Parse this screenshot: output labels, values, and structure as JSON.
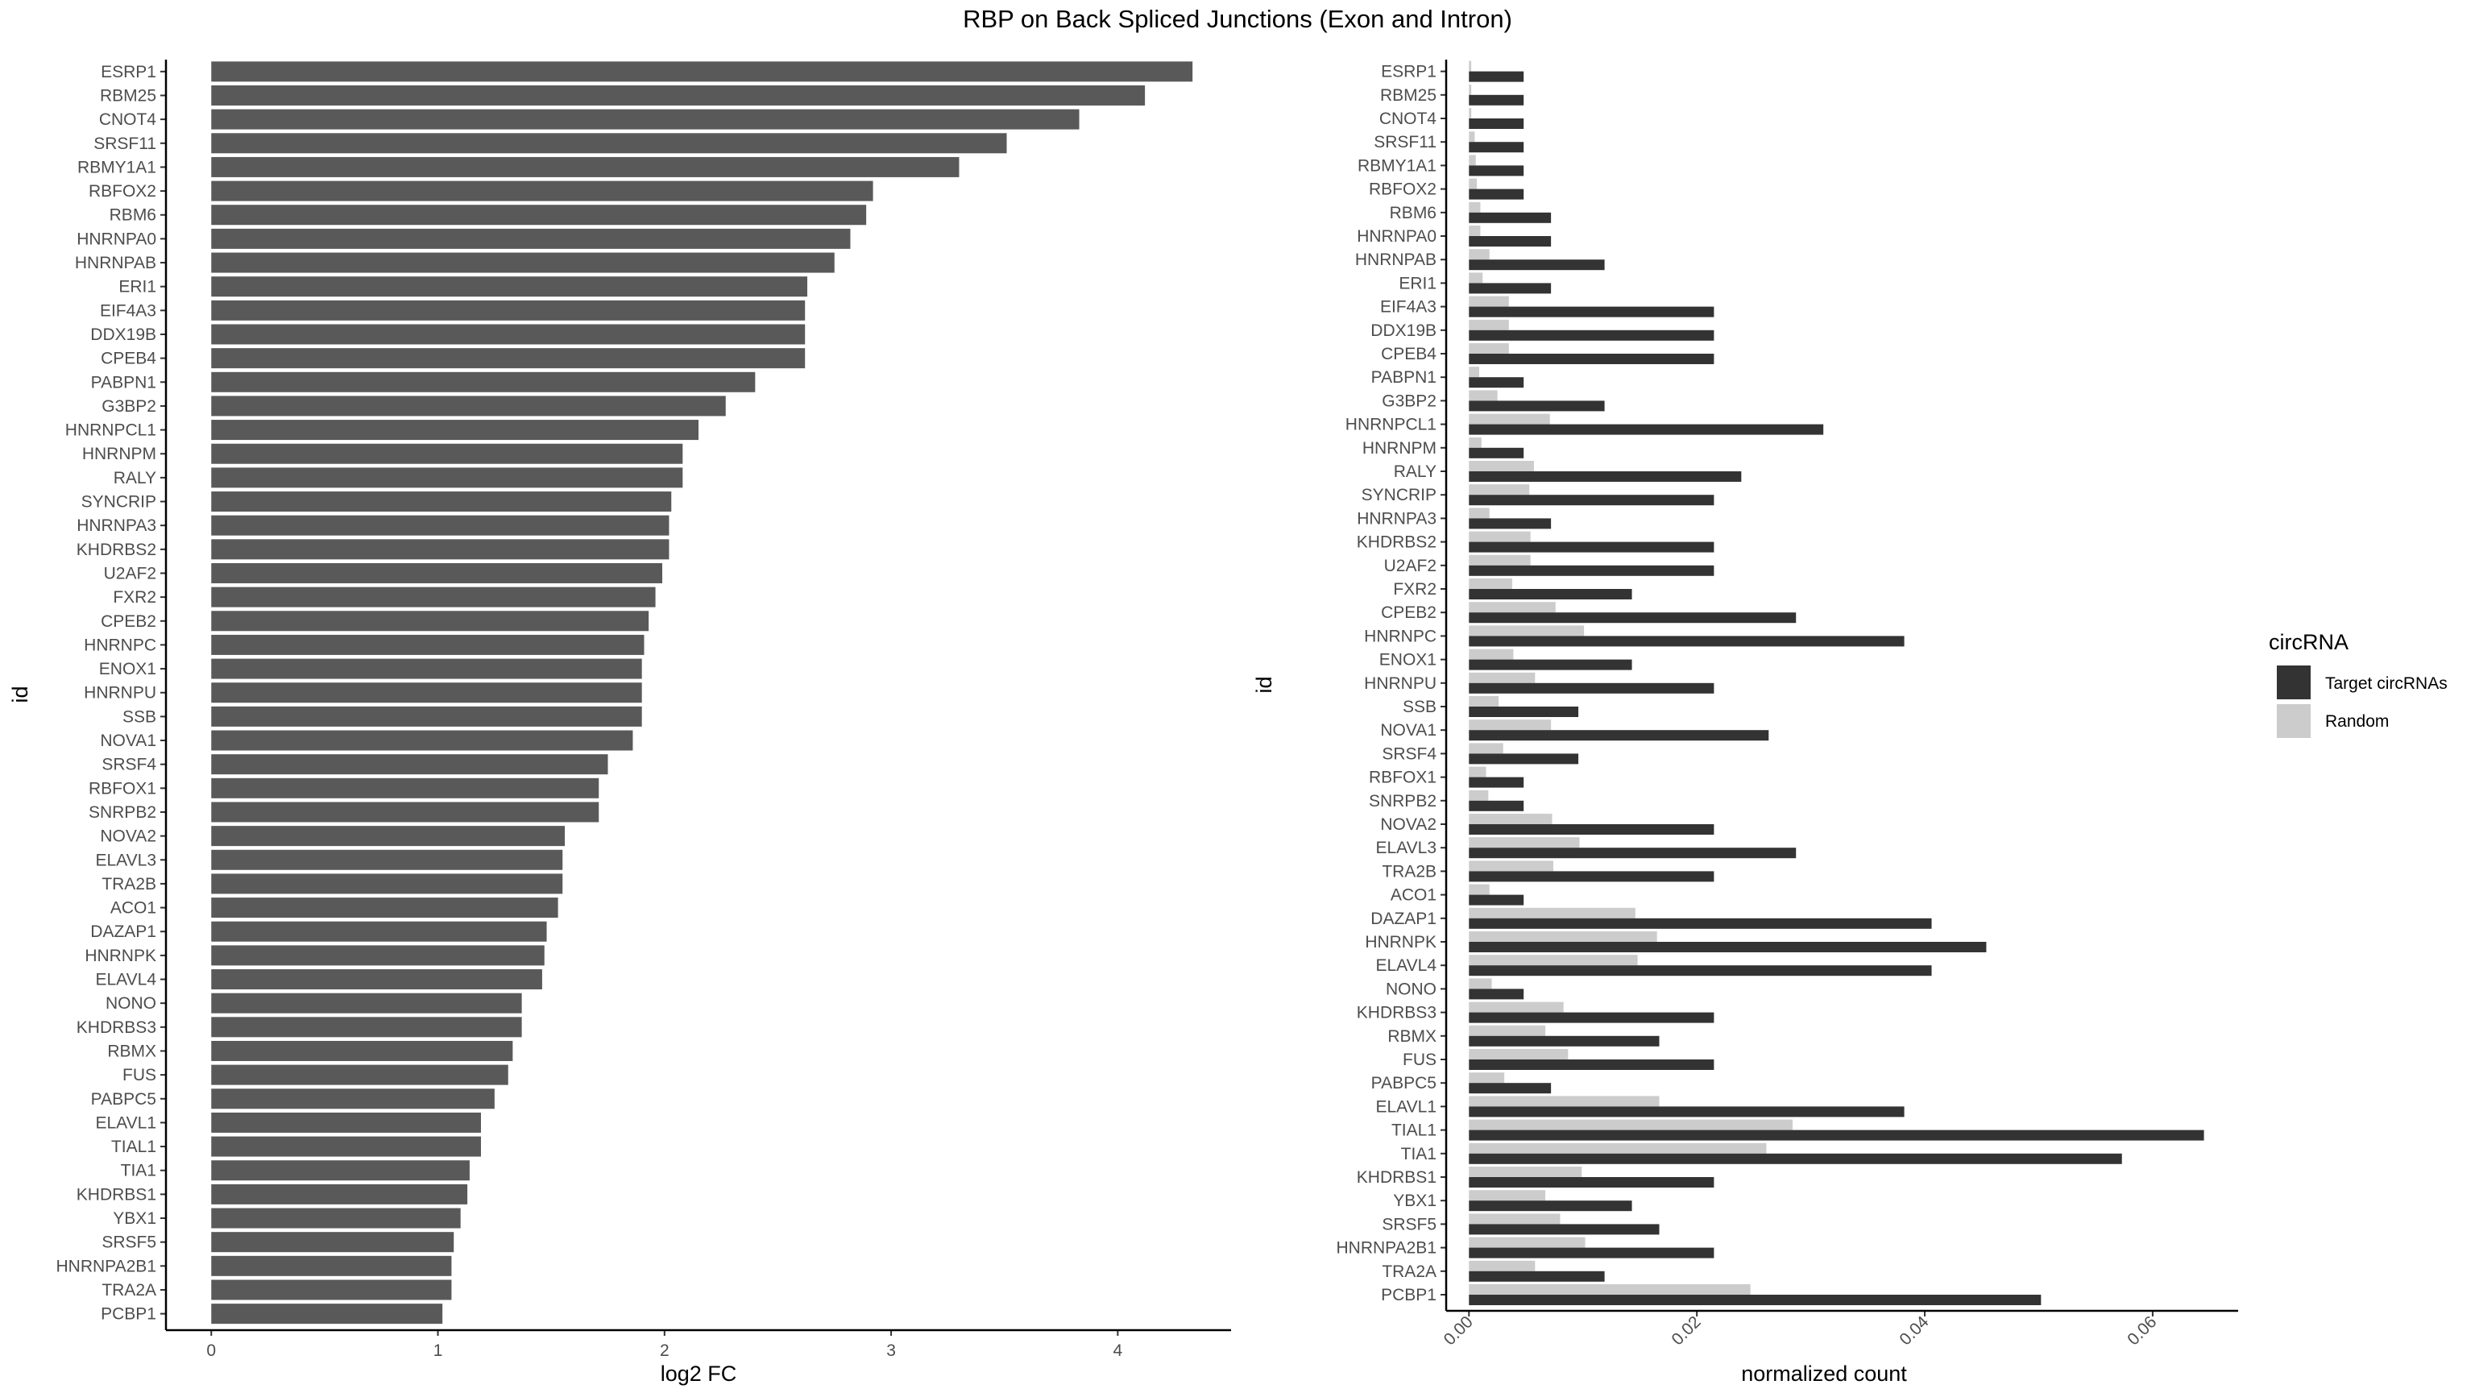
{
  "chart_data": [
    {
      "type": "bar",
      "orientation": "horizontal",
      "title": "RBP on Back Spliced Junctions (Exon and Intron)",
      "xlabel": "log2 FC",
      "ylabel": "id",
      "xlim": [
        -0.2,
        4.5
      ],
      "xticks": [
        "0",
        "1",
        "2",
        "3",
        "4"
      ],
      "grid": false,
      "color": "#595959",
      "categories": [
        "ESRP1",
        "RBM25",
        "CNOT4",
        "SRSF11",
        "RBMY1A1",
        "RBFOX2",
        "RBM6",
        "HNRNPA0",
        "HNRNPAB",
        "ERI1",
        "EIF4A3",
        "DDX19B",
        "CPEB4",
        "PABPN1",
        "G3BP2",
        "HNRNPCL1",
        "HNRNPM",
        "RALY",
        "SYNCRIP",
        "HNRNPA3",
        "KHDRBS2",
        "U2AF2",
        "FXR2",
        "CPEB2",
        "HNRNPC",
        "ENOX1",
        "HNRNPU",
        "SSB",
        "NOVA1",
        "SRSF4",
        "RBFOX1",
        "SNRPB2",
        "NOVA2",
        "ELAVL3",
        "TRA2B",
        "ACO1",
        "DAZAP1",
        "HNRNPK",
        "ELAVL4",
        "NONO",
        "KHDRBS3",
        "RBMX",
        "FUS",
        "PABPC5",
        "ELAVL1",
        "TIAL1",
        "TIA1",
        "KHDRBS1",
        "YBX1",
        "SRSF5",
        "HNRNPA2B1",
        "TRA2A",
        "PCBP1"
      ],
      "values": [
        4.33,
        4.12,
        3.83,
        3.51,
        3.3,
        2.92,
        2.89,
        2.82,
        2.75,
        2.63,
        2.62,
        2.62,
        2.62,
        2.4,
        2.27,
        2.15,
        2.08,
        2.08,
        2.03,
        2.02,
        2.02,
        1.99,
        1.96,
        1.93,
        1.91,
        1.9,
        1.9,
        1.9,
        1.86,
        1.75,
        1.71,
        1.71,
        1.56,
        1.55,
        1.55,
        1.53,
        1.48,
        1.47,
        1.46,
        1.37,
        1.37,
        1.33,
        1.31,
        1.25,
        1.19,
        1.19,
        1.14,
        1.13,
        1.1,
        1.07,
        1.06,
        1.06,
        1.02
      ]
    },
    {
      "type": "bar",
      "orientation": "horizontal",
      "xlabel": "normalized count",
      "ylabel": "id",
      "xlim": [
        -0.002,
        0.0675
      ],
      "xticks": [
        "0.00",
        "0.02",
        "0.04",
        "0.06"
      ],
      "grid": false,
      "legend": {
        "title": "circRNA",
        "position": "right"
      },
      "categories": [
        "ESRP1",
        "RBM25",
        "CNOT4",
        "SRSF11",
        "RBMY1A1",
        "RBFOX2",
        "RBM6",
        "HNRNPA0",
        "HNRNPAB",
        "ERI1",
        "EIF4A3",
        "DDX19B",
        "CPEB4",
        "PABPN1",
        "G3BP2",
        "HNRNPCL1",
        "HNRNPM",
        "RALY",
        "SYNCRIP",
        "HNRNPA3",
        "KHDRBS2",
        "U2AF2",
        "FXR2",
        "CPEB2",
        "HNRNPC",
        "ENOX1",
        "HNRNPU",
        "SSB",
        "NOVA1",
        "SRSF4",
        "RBFOX1",
        "SNRPB2",
        "NOVA2",
        "ELAVL3",
        "TRA2B",
        "ACO1",
        "DAZAP1",
        "HNRNPK",
        "ELAVL4",
        "NONO",
        "KHDRBS3",
        "RBMX",
        "FUS",
        "PABPC5",
        "ELAVL1",
        "TIAL1",
        "TIA1",
        "KHDRBS1",
        "YBX1",
        "SRSF5",
        "HNRNPA2B1",
        "TRA2A",
        "PCBP1"
      ],
      "series": [
        {
          "name": "Target circRNAs",
          "color": "#333333",
          "values": [
            0.0048,
            0.0048,
            0.0048,
            0.0048,
            0.0048,
            0.0048,
            0.0072,
            0.0072,
            0.0119,
            0.0072,
            0.0215,
            0.0215,
            0.0215,
            0.0048,
            0.0119,
            0.0311,
            0.0048,
            0.0239,
            0.0215,
            0.0072,
            0.0215,
            0.0215,
            0.0143,
            0.0287,
            0.0382,
            0.0143,
            0.0215,
            0.0096,
            0.0263,
            0.0096,
            0.0048,
            0.0048,
            0.0215,
            0.0287,
            0.0215,
            0.0048,
            0.0406,
            0.0454,
            0.0406,
            0.0048,
            0.0215,
            0.0167,
            0.0215,
            0.0072,
            0.0382,
            0.0645,
            0.0573,
            0.0215,
            0.0143,
            0.0167,
            0.0215,
            0.0119,
            0.0502
          ]
        },
        {
          "name": "Random",
          "color": "#cccccc",
          "values": [
            0.0002,
            0.0002,
            0.0002,
            0.0005,
            0.0006,
            0.0007,
            0.001,
            0.001,
            0.0018,
            0.0012,
            0.0035,
            0.0035,
            0.0035,
            0.0009,
            0.0025,
            0.0071,
            0.0011,
            0.0057,
            0.0053,
            0.0018,
            0.0054,
            0.0054,
            0.0038,
            0.0076,
            0.0101,
            0.0039,
            0.0058,
            0.0026,
            0.0072,
            0.003,
            0.0015,
            0.0017,
            0.0073,
            0.0097,
            0.0074,
            0.0018,
            0.0146,
            0.0165,
            0.0148,
            0.002,
            0.0083,
            0.0067,
            0.0087,
            0.0031,
            0.0167,
            0.0284,
            0.0261,
            0.0099,
            0.0067,
            0.008,
            0.0102,
            0.0058,
            0.0247
          ]
        }
      ]
    }
  ]
}
